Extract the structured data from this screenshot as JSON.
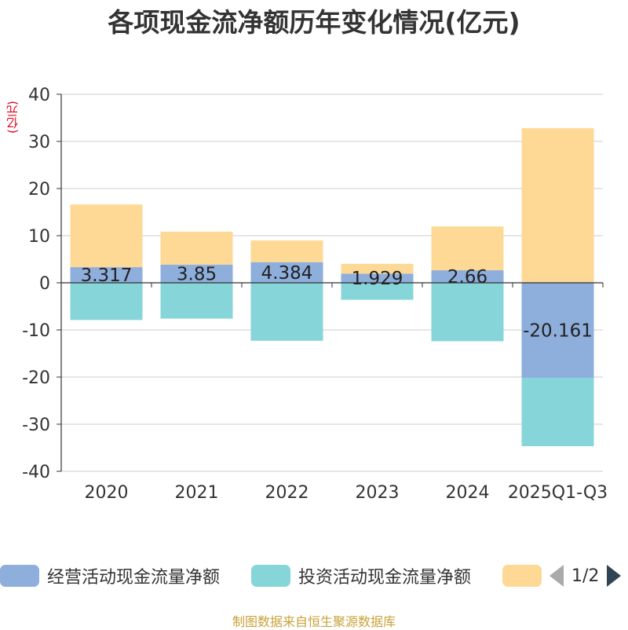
{
  "chart_data": {
    "type": "bar",
    "stacked": true,
    "title": "各项现金流净额历年变化情况(亿元)",
    "ylabel": "(亿元)",
    "categories": [
      "2020",
      "2021",
      "2022",
      "2023",
      "2024",
      "2025Q1-Q3"
    ],
    "ylim": [
      -40,
      40
    ],
    "yticks": [
      40,
      30,
      20,
      10,
      0,
      -10,
      -20,
      -30,
      -40
    ],
    "series": [
      {
        "name": "经营活动现金流量净额",
        "color": "#8eaedc",
        "values": [
          3.317,
          3.85,
          4.384,
          1.929,
          2.66,
          -20.161
        ],
        "labels": [
          "3.317",
          "3.85",
          "4.384",
          "1.929",
          "2.66",
          "-20.161"
        ]
      },
      {
        "name": "投资活动现金流量净额",
        "color": "#86d5d8",
        "values": [
          -7.9,
          -7.6,
          -12.3,
          -3.6,
          -12.4,
          -14.5
        ]
      },
      {
        "name": "",
        "color": "#fed995",
        "values": [
          13.3,
          7.0,
          4.6,
          2.1,
          9.3,
          32.8
        ]
      }
    ],
    "grid": true,
    "legend": "bottom"
  },
  "legend": {
    "page": "1/2"
  },
  "source": "制图数据来自恒生聚源数据库"
}
